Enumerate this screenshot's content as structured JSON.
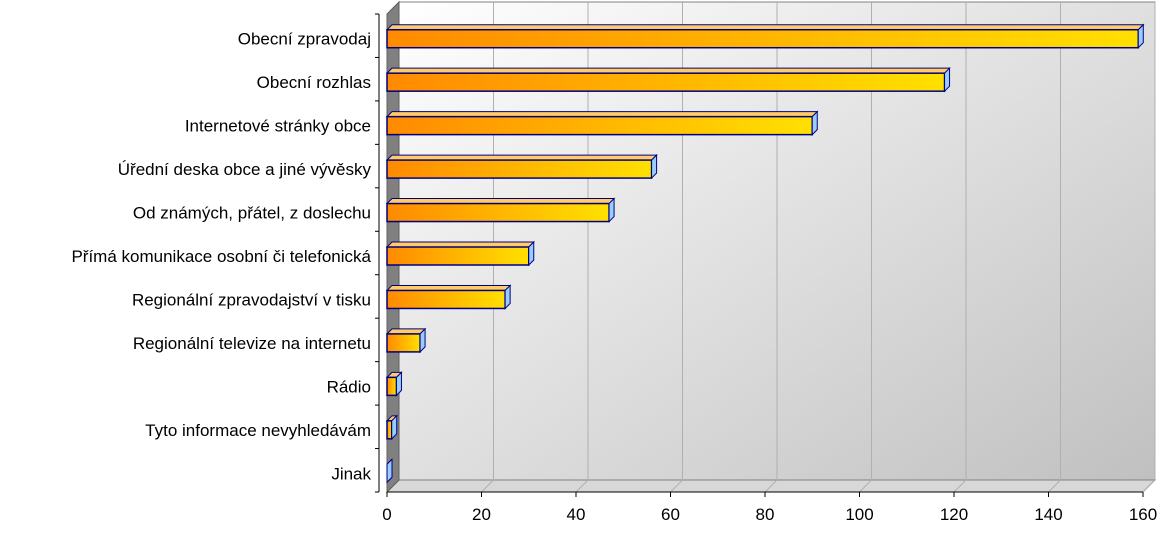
{
  "chart_data": {
    "type": "bar",
    "orientation": "horizontal",
    "categories": [
      "Obecní zpravodaj",
      "Obecní rozhlas",
      "Internetové stránky obce",
      "Úřední deska obce a jiné vývěsky",
      "Od známých, přátel, z doslechu",
      "Přímá komunikace osobní či telefonická",
      "Regionální zpravodajství v tisku",
      "Regionální televize na internetu",
      "Rádio",
      "Tyto informace nevyhledávám",
      "Jinak"
    ],
    "values": [
      159,
      118,
      90,
      56,
      47,
      30,
      25,
      7,
      2,
      1,
      0
    ],
    "xlim": [
      0,
      160
    ],
    "xticks": [
      "0",
      "20",
      "40",
      "60",
      "80",
      "100",
      "120",
      "140",
      "160"
    ],
    "grid": true,
    "title": "",
    "xlabel": "",
    "ylabel": "",
    "colors": {
      "bar_start": "#ff8a00",
      "bar_end": "#ffe000",
      "bar_outline": "#000080",
      "bar_side": "#99ccff",
      "wall": "#808080",
      "background_light": "#ffffff",
      "background_dark": "#c0c0c0",
      "gridline": "#b0b0b0"
    }
  }
}
